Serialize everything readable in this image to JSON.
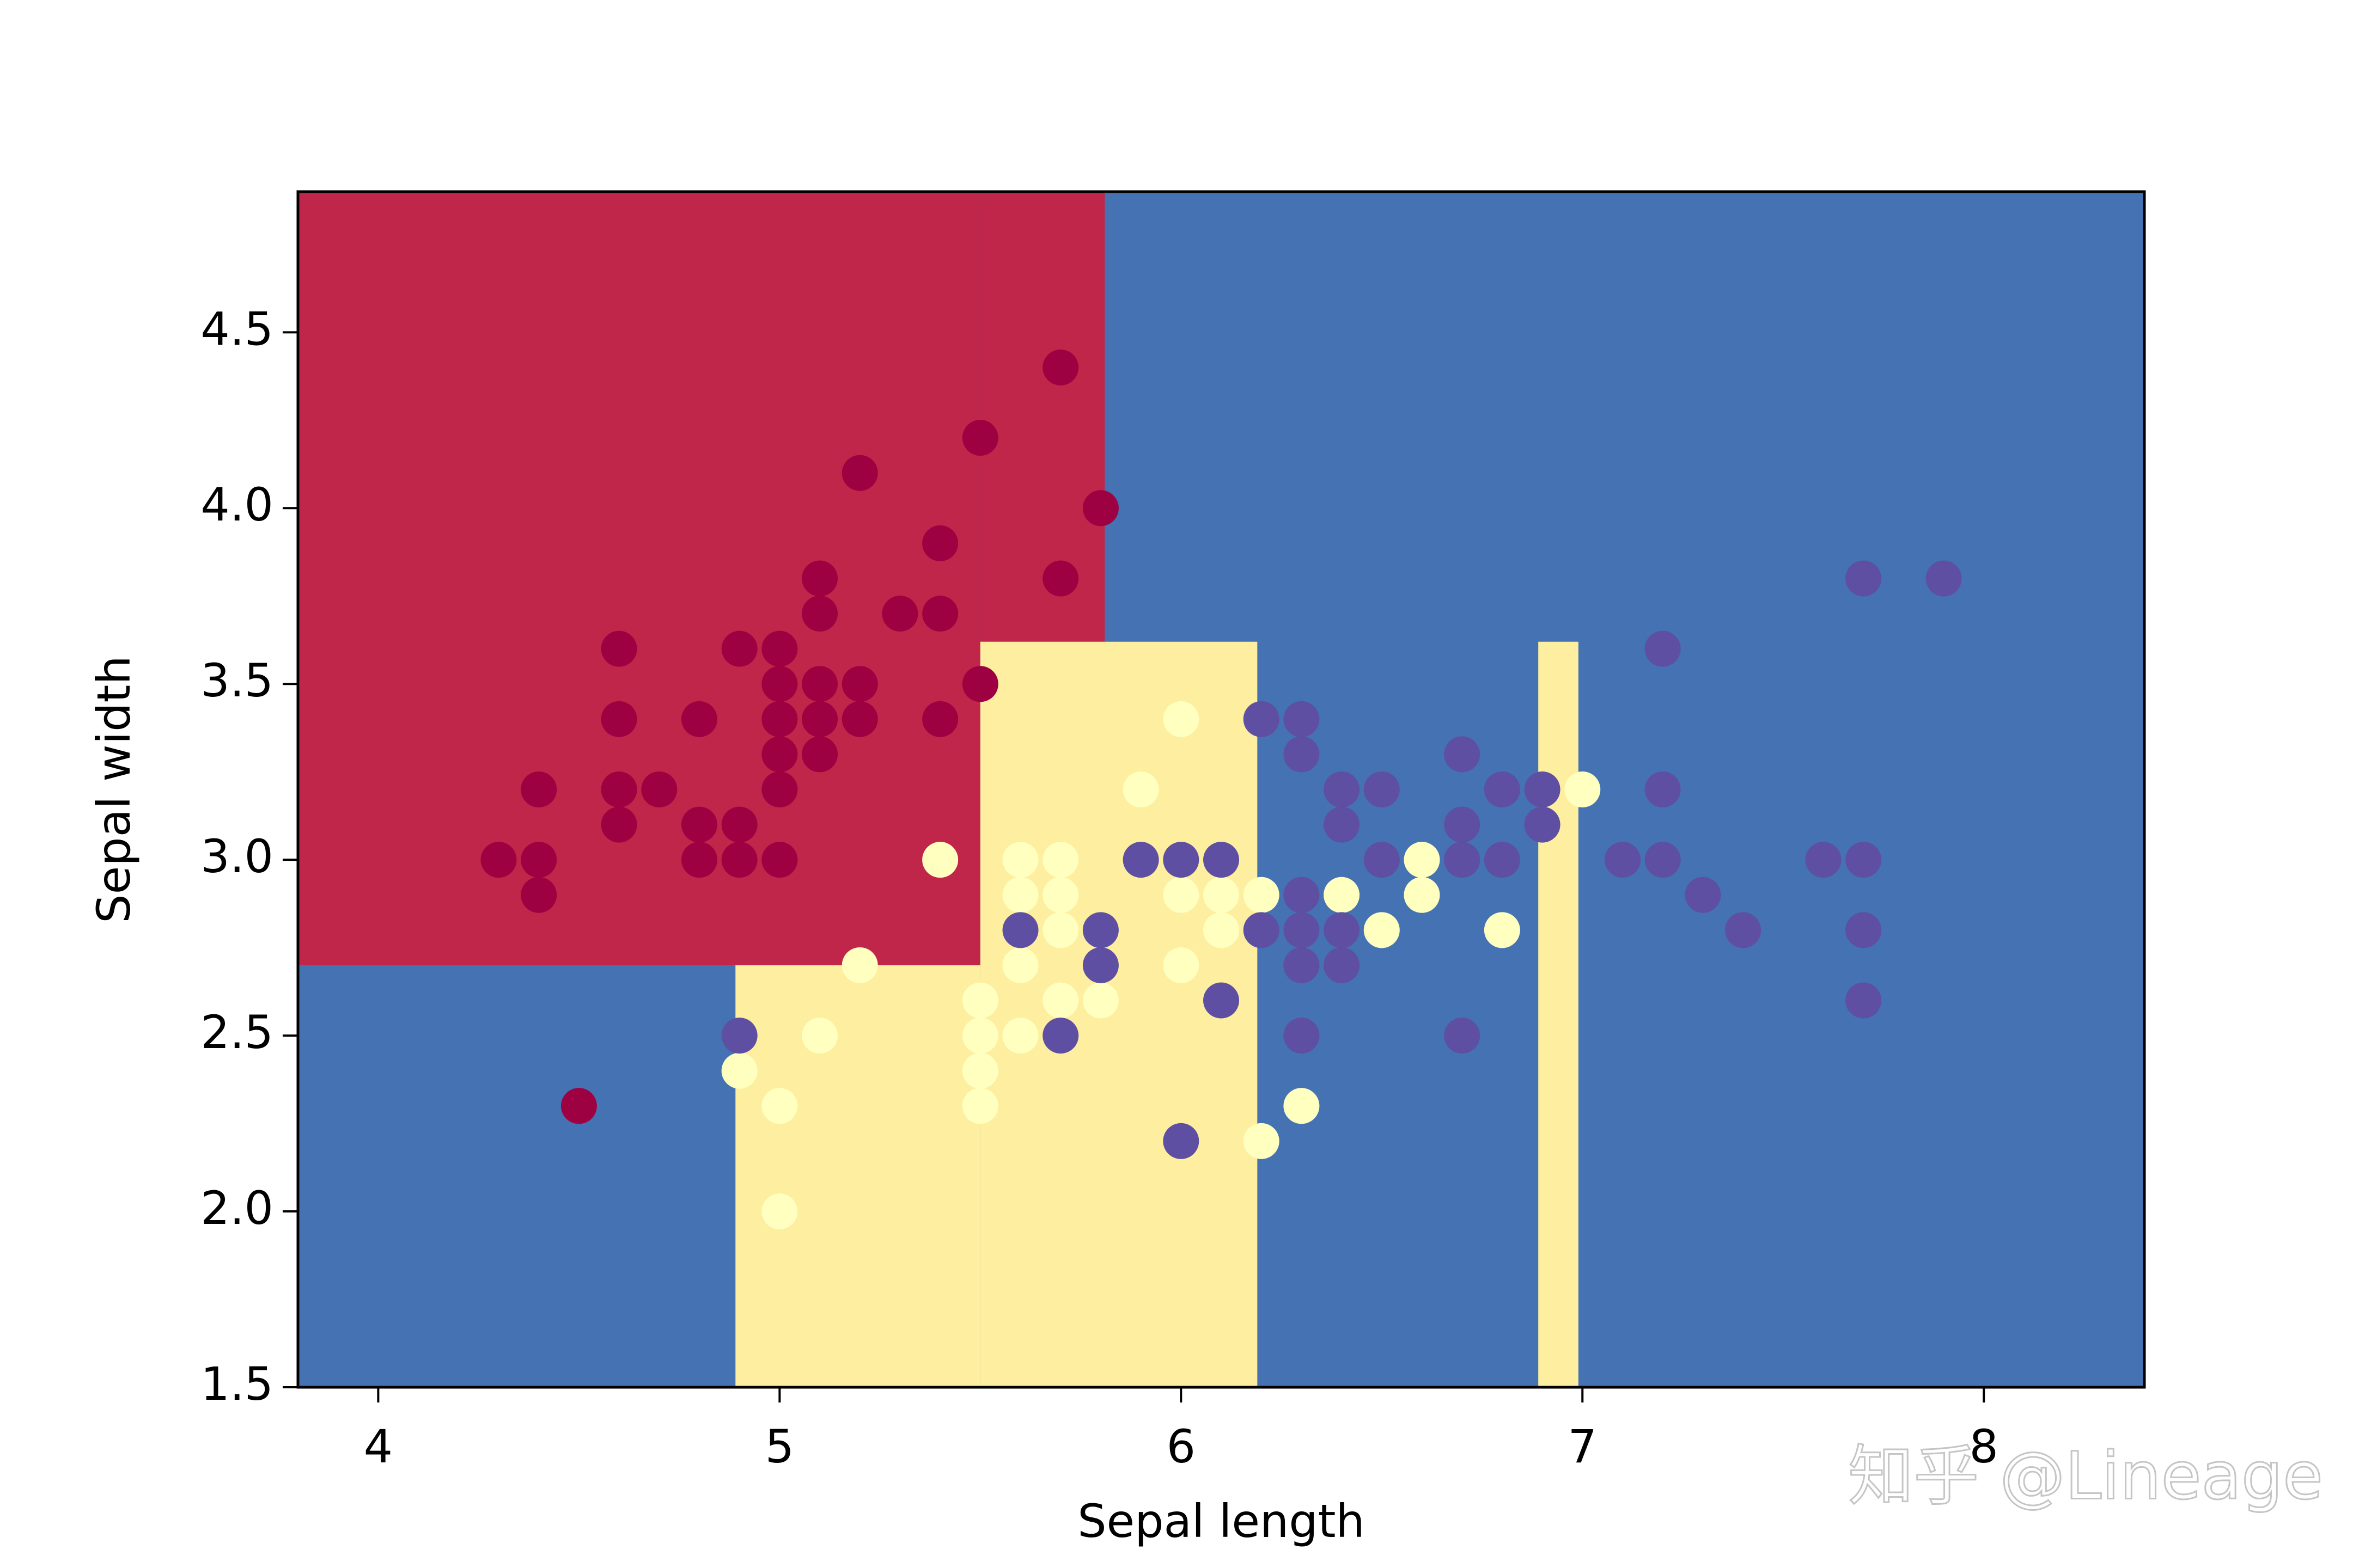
{
  "chart_data": {
    "type": "scatter",
    "x_label": "Sepal length",
    "y_label": "Sepal width",
    "watermark": "知乎 @Lineage",
    "xlim": [
      3.8,
      8.4
    ],
    "ylim": [
      1.5,
      4.9
    ],
    "xticks": [
      4,
      5,
      6,
      7,
      8
    ],
    "yticks": [
      1.5,
      {
        "value": 2,
        "label": "2.0"
      },
      2.5,
      {
        "value": 3,
        "label": "3.0"
      },
      3.5,
      {
        "value": 4,
        "label": "4.0"
      },
      4.5
    ],
    "background_color": "#4472b2",
    "regions": [
      {
        "color": "#c0264a",
        "x": [
          3.8,
          5.5
        ],
        "y": [
          2.7,
          4.9
        ]
      },
      {
        "color": "#c0264a",
        "x": [
          5.5,
          5.81
        ],
        "y": [
          3.62,
          4.9
        ]
      },
      {
        "color": "#fdeea0",
        "x": [
          4.89,
          5.5
        ],
        "y": [
          1.5,
          2.7
        ]
      },
      {
        "color": "#fdeea0",
        "x": [
          5.5,
          6.19
        ],
        "y": [
          1.5,
          3.62
        ]
      },
      {
        "color": "#fdeea0",
        "x": [
          6.89,
          6.99
        ],
        "y": [
          1.5,
          3.62
        ]
      }
    ],
    "series": [
      {
        "color": "#9e0142",
        "x": [
          4.3,
          4.4,
          4.4,
          4.4,
          4.5,
          4.6,
          4.6,
          4.6,
          4.6,
          4.7,
          4.8,
          4.8,
          4.8,
          4.9,
          4.9,
          4.9,
          5.0,
          5.0,
          5.0,
          5.0,
          5.0,
          5.0,
          5.1,
          5.1,
          5.1,
          5.1,
          5.1,
          5.2,
          5.2,
          5.2,
          5.3,
          5.4,
          5.4,
          5.4,
          5.5,
          5.5,
          5.7,
          5.7,
          5.8
        ],
        "values": [
          3.0,
          3.2,
          3.0,
          2.9,
          2.3,
          3.6,
          3.4,
          3.2,
          3.1,
          3.2,
          3.4,
          3.1,
          3.0,
          3.6,
          3.1,
          3.0,
          3.6,
          3.5,
          3.4,
          3.3,
          3.2,
          3.0,
          3.8,
          3.7,
          3.5,
          3.4,
          3.3,
          4.1,
          3.5,
          3.4,
          3.7,
          3.9,
          3.7,
          3.4,
          4.2,
          3.5,
          4.4,
          3.8,
          4.0
        ]
      },
      {
        "color": "#ffffbf",
        "x": [
          4.9,
          5.0,
          5.0,
          5.1,
          5.2,
          5.4,
          5.5,
          5.5,
          5.5,
          5.5,
          5.6,
          5.6,
          5.6,
          5.6,
          5.7,
          5.7,
          5.7,
          5.7,
          5.8,
          5.8,
          5.9,
          6.0,
          6.0,
          6.0,
          6.1,
          6.1,
          6.1,
          6.2,
          6.2,
          6.3,
          6.4,
          6.5,
          6.6,
          6.6,
          6.8,
          7.0
        ],
        "values": [
          2.4,
          2.3,
          2.0,
          2.5,
          2.7,
          3.0,
          2.6,
          2.5,
          2.4,
          2.3,
          3.0,
          2.9,
          2.7,
          2.5,
          3.0,
          2.9,
          2.8,
          2.6,
          2.7,
          2.6,
          3.2,
          3.4,
          2.9,
          2.7,
          3.0,
          2.9,
          2.8,
          2.9,
          2.2,
          2.3,
          2.9,
          2.8,
          3.0,
          2.9,
          2.8,
          3.2
        ]
      },
      {
        "color": "#5e4fa2",
        "x": [
          4.9,
          5.6,
          5.7,
          5.8,
          5.8,
          5.9,
          6.0,
          6.0,
          6.1,
          6.1,
          6.2,
          6.2,
          6.3,
          6.3,
          6.3,
          6.3,
          6.3,
          6.3,
          6.4,
          6.4,
          6.4,
          6.4,
          6.5,
          6.5,
          6.7,
          6.7,
          6.7,
          6.7,
          6.8,
          6.8,
          6.9,
          6.9,
          7.1,
          7.2,
          7.2,
          7.2,
          7.3,
          7.4,
          7.6,
          7.7,
          7.7,
          7.7,
          7.7,
          7.9
        ],
        "values": [
          2.5,
          2.8,
          2.5,
          2.8,
          2.7,
          3.0,
          3.0,
          2.2,
          3.0,
          2.6,
          3.4,
          2.8,
          3.4,
          3.3,
          2.9,
          2.8,
          2.7,
          2.5,
          3.2,
          3.1,
          2.8,
          2.7,
          3.2,
          3.0,
          3.3,
          3.1,
          3.0,
          2.5,
          3.2,
          3.0,
          3.2,
          3.1,
          3.0,
          3.6,
          3.2,
          3.0,
          2.9,
          2.8,
          3.0,
          3.8,
          3.0,
          2.8,
          2.6,
          3.8
        ]
      }
    ]
  }
}
